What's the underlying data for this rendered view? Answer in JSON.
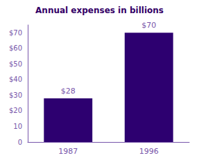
{
  "chart_data": {
    "type": "bar",
    "title": "Annual expenses in billions",
    "categories": [
      "1987",
      "1996"
    ],
    "values": [
      28,
      70
    ],
    "value_labels": [
      "$28",
      "$70"
    ],
    "color": "#2d0070",
    "data_labels": true,
    "ylim": [
      0,
      75
    ],
    "yticks": [
      0,
      10,
      {
        "value": 20,
        "label": "$20"
      },
      {
        "value": 30,
        "label": "$30"
      },
      {
        "value": 40,
        "label": "$40"
      },
      {
        "value": 50,
        "label": "$50"
      },
      {
        "value": 60,
        "label": "$60"
      },
      {
        "value": 70,
        "label": "$70"
      }
    ],
    "grid": false
  }
}
